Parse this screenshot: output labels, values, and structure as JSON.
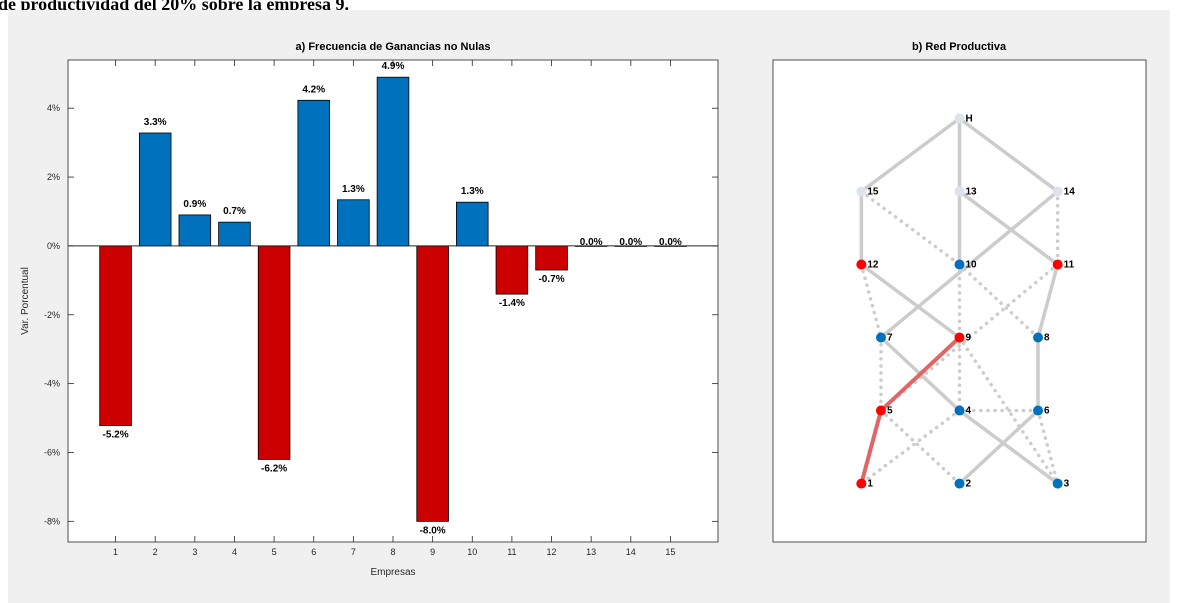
{
  "heading": "de productividad del 20% sobre la empresa 9.",
  "colors": {
    "positive": "#0072BD",
    "negative": "#CC0000",
    "edge": "#cccccc",
    "edge_highlight": "#e06666",
    "node_inactive": "#dde3ea"
  },
  "chart_data": [
    {
      "type": "bar",
      "title": "a) Frecuencia de Ganancias no Nulas",
      "xlabel": "Empresas",
      "ylabel": "Var. Porcentual",
      "categories": [
        "1",
        "2",
        "3",
        "4",
        "5",
        "6",
        "7",
        "8",
        "9",
        "10",
        "11",
        "12",
        "13",
        "14",
        "15"
      ],
      "values": [
        -5.2,
        3.3,
        0.9,
        0.7,
        -6.2,
        4.2,
        1.3,
        4.9,
        -8.0,
        1.3,
        -1.4,
        -0.7,
        0.0,
        0.0,
        0.0
      ],
      "bar_heights": [
        -5.22,
        3.28,
        0.9,
        0.69,
        -6.2,
        4.23,
        1.34,
        4.9,
        -8.0,
        1.27,
        -1.4,
        -0.7,
        0.0,
        0.0,
        0.0
      ],
      "data_labels": [
        "-5.2%",
        "3.3%",
        "0.9%",
        "0.7%",
        "-6.2%",
        "4.2%",
        "1.3%",
        "4.9%",
        "-8.0%",
        "1.3%",
        "-1.4%",
        "-0.7%",
        "0.0%",
        "0.0%",
        "0.0%"
      ],
      "yticks": [
        -8,
        -6,
        -4,
        -2,
        0,
        2,
        4
      ],
      "ytick_labels": [
        "-8%",
        "-6%",
        "-4%",
        "-2%",
        "0%",
        "2%",
        "4%"
      ],
      "ylim": [
        -8.6,
        5.4
      ],
      "xlim": [
        -0.2,
        16.2
      ]
    },
    {
      "type": "network",
      "title": "b) Red Productiva",
      "nodes": [
        {
          "id": "H",
          "x": 2,
          "y": 6,
          "state": "inactive"
        },
        {
          "id": "15",
          "x": 1,
          "y": 5,
          "state": "inactive"
        },
        {
          "id": "13",
          "x": 2,
          "y": 5,
          "state": "inactive"
        },
        {
          "id": "14",
          "x": 3,
          "y": 5,
          "state": "inactive"
        },
        {
          "id": "12",
          "x": 1,
          "y": 4,
          "state": "negative"
        },
        {
          "id": "10",
          "x": 2,
          "y": 4,
          "state": "positive"
        },
        {
          "id": "11",
          "x": 3,
          "y": 4,
          "state": "negative"
        },
        {
          "id": "7",
          "x": 1.2,
          "y": 3,
          "state": "positive"
        },
        {
          "id": "9",
          "x": 2,
          "y": 3,
          "state": "negative"
        },
        {
          "id": "8",
          "x": 2.8,
          "y": 3,
          "state": "positive"
        },
        {
          "id": "5",
          "x": 1.2,
          "y": 2,
          "state": "negative"
        },
        {
          "id": "4",
          "x": 2,
          "y": 2,
          "state": "positive"
        },
        {
          "id": "6",
          "x": 2.8,
          "y": 2,
          "state": "positive"
        },
        {
          "id": "1",
          "x": 1,
          "y": 1,
          "state": "negative"
        },
        {
          "id": "2",
          "x": 2,
          "y": 1,
          "state": "positive"
        },
        {
          "id": "3",
          "x": 3,
          "y": 1,
          "state": "positive"
        }
      ],
      "edges": [
        {
          "from": "H",
          "to": "15",
          "style": "solid"
        },
        {
          "from": "H",
          "to": "13",
          "style": "solid"
        },
        {
          "from": "H",
          "to": "14",
          "style": "solid"
        },
        {
          "from": "15",
          "to": "12",
          "style": "solid"
        },
        {
          "from": "15",
          "to": "10",
          "style": "dotted"
        },
        {
          "from": "13",
          "to": "10",
          "style": "solid"
        },
        {
          "from": "13",
          "to": "11",
          "style": "solid"
        },
        {
          "from": "14",
          "to": "7",
          "style": "solid"
        },
        {
          "from": "14",
          "to": "11",
          "style": "dotted"
        },
        {
          "from": "12",
          "to": "7",
          "style": "dotted"
        },
        {
          "from": "12",
          "to": "9",
          "style": "solid"
        },
        {
          "from": "10",
          "to": "4",
          "style": "dotted"
        },
        {
          "from": "10",
          "to": "8",
          "style": "dotted"
        },
        {
          "from": "11",
          "to": "8",
          "style": "solid"
        },
        {
          "from": "11",
          "to": "5",
          "style": "dotted"
        },
        {
          "from": "7",
          "to": "4",
          "style": "solid"
        },
        {
          "from": "7",
          "to": "5",
          "style": "dotted"
        },
        {
          "from": "9",
          "to": "5",
          "style": "highlight"
        },
        {
          "from": "9",
          "to": "3",
          "style": "dotted"
        },
        {
          "from": "8",
          "to": "6",
          "style": "solid"
        },
        {
          "from": "5",
          "to": "1",
          "style": "highlight"
        },
        {
          "from": "5",
          "to": "2",
          "style": "dotted"
        },
        {
          "from": "4",
          "to": "6",
          "style": "dotted"
        },
        {
          "from": "4",
          "to": "1",
          "style": "dotted"
        },
        {
          "from": "6",
          "to": "2",
          "style": "solid"
        },
        {
          "from": "6",
          "to": "3",
          "style": "dotted"
        },
        {
          "from": "4",
          "to": "3",
          "style": "solid"
        }
      ],
      "xlim": [
        0.1,
        3.9
      ],
      "ylim": [
        0.2,
        6.8
      ]
    }
  ]
}
